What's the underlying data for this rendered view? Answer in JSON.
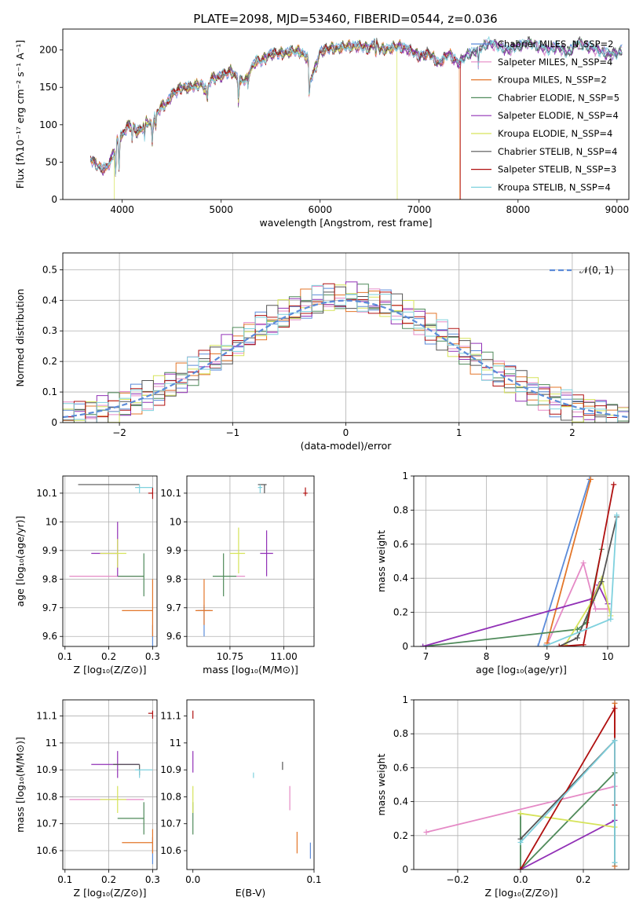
{
  "figure_title": "PLATE=2098, MJD=53460, FIBERID=0544, z=0.036",
  "colors": {
    "Chabrier MILES": "#5b8bd9",
    "Salpeter MILES": "#e58ac6",
    "Kroupa MILES": "#e3762a",
    "Chabrier ELODIE": "#4f8a5a",
    "Salpeter ELODIE": "#9130b6",
    "Kroupa ELODIE": "#d6e35a",
    "Chabrier STELIB": "#555555",
    "Salpeter STELIB": "#b01010",
    "Kroupa STELIB": "#7fd1de"
  },
  "chart_data": [
    {
      "id": "spectrum",
      "type": "line",
      "title": "PLATE=2098, MJD=53460, FIBERID=0544, z=0.036",
      "xlabel": "wavelength [Angstrom, rest frame]",
      "ylabel": "Flux [fλ10⁻¹⁷ erg cm⁻² s⁻¹ A⁻¹]",
      "xlim": [
        3400,
        9120
      ],
      "ylim": [
        0,
        228
      ],
      "xticks": [
        4000,
        5000,
        6000,
        7000,
        8000,
        9000
      ],
      "yticks": [
        0,
        50,
        100,
        150,
        200
      ],
      "legend_position": "top-right",
      "legend": [
        "Chabrier MILES, N_SSP=2",
        "Salpeter MILES, N_SSP=4",
        "Kroupa MILES, N_SSP=2",
        "Chabrier ELODIE, N_SSP=5",
        "Salpeter ELODIE, N_SSP=4",
        "Kroupa ELODIE, N_SSP=4",
        "Chabrier STELIB, N_SSP=4",
        "Salpeter STELIB, N_SSP=3",
        "Kroupa STELIB, N_SSP=4"
      ],
      "spectrum_x": [
        3680,
        3750,
        3820,
        3880,
        3950,
        4000,
        4050,
        4100,
        4150,
        4200,
        4250,
        4300,
        4350,
        4400,
        4450,
        4500,
        4600,
        4700,
        4800,
        4850,
        4900,
        5000,
        5100,
        5150,
        5200,
        5250,
        5300,
        5350,
        5400,
        5500,
        5600,
        5700,
        5800,
        5880,
        5900,
        5950,
        6000,
        6100,
        6200,
        6300,
        6400,
        6500,
        6560,
        6600,
        6700,
        6800,
        6900,
        7000,
        7100,
        7200,
        7300,
        7400,
        7500,
        7600,
        7700,
        7800,
        7900,
        8000,
        8100,
        8200,
        8300,
        8400,
        8500,
        8600,
        8700,
        8800,
        8900,
        9000,
        9050
      ],
      "spectrum_y": [
        55,
        45,
        40,
        50,
        80,
        85,
        98,
        100,
        90,
        95,
        105,
        100,
        115,
        125,
        128,
        140,
        150,
        150,
        155,
        145,
        162,
        165,
        172,
        165,
        158,
        160,
        175,
        185,
        185,
        195,
        195,
        198,
        198,
        188,
        160,
        175,
        198,
        202,
        203,
        205,
        205,
        202,
        212,
        200,
        202,
        205,
        200,
        192,
        195,
        182,
        195,
        182,
        195,
        200,
        210,
        205,
        200,
        205,
        210,
        205,
        200,
        205,
        195,
        210,
        205,
        200,
        195,
        195,
        200
      ],
      "truncations": [
        {
          "series": "Kroupa ELODIE",
          "start": 3920
        },
        {
          "series": "Kroupa ELODIE",
          "end": 6780
        },
        {
          "series": "Salpeter STELIB",
          "end": 7420
        },
        {
          "series": "Kroupa MILES",
          "end": 7410
        }
      ]
    },
    {
      "id": "residuals",
      "type": "step",
      "xlabel": "(data-model)/error",
      "ylabel": "Normed distribution",
      "xlim": [
        -2.5,
        2.5
      ],
      "ylim": [
        0,
        0.555
      ],
      "xticks": [
        -2,
        -1,
        0,
        1,
        2
      ],
      "xticklabels": [
        "−2",
        "−1",
        "0",
        "1",
        "2"
      ],
      "yticks": [
        0.0,
        0.1,
        0.2,
        0.3,
        0.4,
        0.5
      ],
      "grid": true,
      "legend_position": "top-right",
      "gaussian_label": "𝒩(0, 1)",
      "bin_width": 0.1,
      "bin_start": -2.5
    },
    {
      "id": "age_vs_Z",
      "type": "errorbar",
      "xlabel": "Z [log₁₀(Z/Z⊙)]",
      "ylabel": "age  [log₁₀(age/yr)]",
      "xlim": [
        0.095,
        0.31
      ],
      "ylim": [
        9.565,
        10.16
      ],
      "xticks": [
        0.1,
        0.2,
        0.3
      ],
      "yticks": [
        9.6,
        9.7,
        9.8,
        9.9,
        10.0,
        10.1
      ],
      "grid": true,
      "points": [
        {
          "series": "Chabrier MILES",
          "x": 0.3,
          "y": 9.6,
          "xerr": [
            0.3,
            0.3
          ],
          "yerr": [
            9.56,
            9.64
          ]
        },
        {
          "series": "Salpeter MILES",
          "x": 0.22,
          "y": 9.81,
          "xerr": [
            0.11,
            0.28
          ],
          "yerr": [
            9.81,
            9.81
          ]
        },
        {
          "series": "Kroupa MILES",
          "x": 0.3,
          "y": 9.69,
          "xerr": [
            0.23,
            0.3
          ],
          "yerr": [
            9.6,
            9.8
          ]
        },
        {
          "series": "Chabrier ELODIE",
          "x": 0.28,
          "y": 9.81,
          "xerr": [
            0.22,
            0.28
          ],
          "yerr": [
            9.74,
            9.89
          ]
        },
        {
          "series": "Salpeter ELODIE",
          "x": 0.22,
          "y": 9.89,
          "xerr": [
            0.16,
            0.22
          ],
          "yerr": [
            9.81,
            10.0
          ]
        },
        {
          "series": "Kroupa ELODIE",
          "x": 0.22,
          "y": 9.89,
          "xerr": [
            0.18,
            0.24
          ],
          "yerr": [
            9.84,
            9.94
          ]
        },
        {
          "series": "Chabrier STELIB",
          "x": 0.27,
          "y": 10.13,
          "xerr": [
            0.13,
            0.27
          ],
          "yerr": [
            10.13,
            10.13
          ]
        },
        {
          "series": "Salpeter STELIB",
          "x": 0.3,
          "y": 10.1,
          "xerr": [
            0.29,
            0.3
          ],
          "yerr": [
            10.08,
            10.12
          ]
        },
        {
          "series": "Kroupa STELIB",
          "x": 0.27,
          "y": 10.12,
          "xerr": [
            0.26,
            0.3
          ],
          "yerr": [
            10.1,
            10.13
          ]
        }
      ]
    },
    {
      "id": "age_vs_mass",
      "type": "errorbar",
      "xlabel": "mass [log₁₀(M/M⊙)]",
      "xlim": [
        10.55,
        11.14
      ],
      "ylim": [
        9.565,
        10.16
      ],
      "xticks": [
        10.75,
        11.0
      ],
      "xticklabels": [
        "10.75",
        "11.00"
      ],
      "yticks": [
        9.6,
        9.7,
        9.8,
        9.9,
        10.0,
        10.1
      ],
      "grid": true,
      "points": [
        {
          "series": "Chabrier MILES",
          "x": 10.63,
          "y": 9.69,
          "xerr": [
            10.6,
            10.66
          ],
          "yerr": [
            9.6,
            9.71
          ]
        },
        {
          "series": "Salpeter MILES",
          "x": 10.8,
          "y": 9.81,
          "xerr": [
            10.78,
            10.82
          ],
          "yerr": [
            9.81,
            9.81
          ]
        },
        {
          "series": "Kroupa MILES",
          "x": 10.63,
          "y": 9.69,
          "xerr": [
            10.59,
            10.67
          ],
          "yerr": [
            9.64,
            9.8
          ]
        },
        {
          "series": "Chabrier ELODIE",
          "x": 10.72,
          "y": 9.81,
          "xerr": [
            10.67,
            10.78
          ],
          "yerr": [
            9.74,
            9.89
          ]
        },
        {
          "series": "Salpeter ELODIE",
          "x": 10.92,
          "y": 9.89,
          "xerr": [
            10.89,
            10.95
          ],
          "yerr": [
            9.81,
            9.97
          ]
        },
        {
          "series": "Kroupa ELODIE",
          "x": 10.79,
          "y": 9.89,
          "xerr": [
            10.75,
            10.82
          ],
          "yerr": [
            9.82,
            9.98
          ]
        },
        {
          "series": "Chabrier STELIB",
          "x": 10.91,
          "y": 10.13,
          "xerr": [
            10.88,
            10.92
          ],
          "yerr": [
            10.1,
            10.13
          ]
        },
        {
          "series": "Salpeter STELIB",
          "x": 11.1,
          "y": 10.1,
          "xerr": [
            11.09,
            11.11
          ],
          "yerr": [
            10.09,
            10.12
          ]
        },
        {
          "series": "Kroupa STELIB",
          "x": 10.89,
          "y": 10.12,
          "xerr": [
            10.88,
            10.9
          ],
          "yerr": [
            10.1,
            10.13
          ]
        }
      ]
    },
    {
      "id": "mass_vs_Z",
      "type": "errorbar",
      "xlabel": "Z [log₁₀(Z/Z⊙)]",
      "ylabel": "mass [log₁₀(M/M⊙)]",
      "xlim": [
        0.095,
        0.31
      ],
      "ylim": [
        10.53,
        11.16
      ],
      "xticks": [
        0.1,
        0.2,
        0.3
      ],
      "yticks": [
        10.6,
        10.7,
        10.8,
        10.9,
        11.0,
        11.1
      ],
      "grid": true,
      "points": [
        {
          "series": "Chabrier MILES",
          "x": 0.3,
          "y": 10.6,
          "xerr": [
            0.3,
            0.3
          ],
          "yerr": [
            10.55,
            10.65
          ]
        },
        {
          "series": "Salpeter MILES",
          "x": 0.22,
          "y": 10.79,
          "xerr": [
            0.11,
            0.28
          ],
          "yerr": [
            10.79,
            10.79
          ]
        },
        {
          "series": "Kroupa MILES",
          "x": 0.3,
          "y": 10.63,
          "xerr": [
            0.23,
            0.3
          ],
          "yerr": [
            10.59,
            10.68
          ]
        },
        {
          "series": "Chabrier ELODIE",
          "x": 0.28,
          "y": 10.72,
          "xerr": [
            0.22,
            0.28
          ],
          "yerr": [
            10.66,
            10.78
          ]
        },
        {
          "series": "Salpeter ELODIE",
          "x": 0.22,
          "y": 10.92,
          "xerr": [
            0.16,
            0.27
          ],
          "yerr": [
            10.87,
            10.97
          ]
        },
        {
          "series": "Kroupa ELODIE",
          "x": 0.22,
          "y": 10.79,
          "xerr": [
            0.18,
            0.24
          ],
          "yerr": [
            10.74,
            10.84
          ]
        },
        {
          "series": "Chabrier STELIB",
          "x": 0.27,
          "y": 10.92,
          "xerr": [
            0.21,
            0.27
          ],
          "yerr": [
            10.88,
            10.92
          ]
        },
        {
          "series": "Salpeter STELIB",
          "x": 0.3,
          "y": 11.11,
          "xerr": [
            0.29,
            0.3
          ],
          "yerr": [
            11.09,
            11.12
          ]
        },
        {
          "series": "Kroupa STELIB",
          "x": 0.27,
          "y": 10.9,
          "xerr": [
            0.26,
            0.3
          ],
          "yerr": [
            10.87,
            10.9
          ]
        }
      ]
    },
    {
      "id": "mass_vs_EBV",
      "type": "errorbar",
      "xlabel": "E(B-V)",
      "xlim": [
        -0.005,
        0.1
      ],
      "ylim": [
        10.53,
        11.16
      ],
      "xticks": [
        0.0,
        0.1
      ],
      "xticklabels": [
        "0.0",
        "0.1"
      ],
      "yticks": [
        10.6,
        10.7,
        10.8,
        10.9,
        11.0,
        11.1
      ],
      "grid": false,
      "points": [
        {
          "series": "Chabrier MILES",
          "x": 0.097,
          "y": 10.6,
          "yerr": [
            10.57,
            10.63
          ]
        },
        {
          "series": "Salpeter MILES",
          "x": 0.08,
          "y": 10.79,
          "yerr": [
            10.75,
            10.84
          ]
        },
        {
          "series": "Kroupa MILES",
          "x": 0.086,
          "y": 10.63,
          "yerr": [
            10.59,
            10.67
          ]
        },
        {
          "series": "Chabrier ELODIE",
          "x": 0.0,
          "y": 10.72,
          "yerr": [
            10.66,
            10.78
          ]
        },
        {
          "series": "Salpeter ELODIE",
          "x": 0.0,
          "y": 10.92,
          "yerr": [
            10.89,
            10.97
          ]
        },
        {
          "series": "Kroupa ELODIE",
          "x": 0.0,
          "y": 10.79,
          "yerr": [
            10.74,
            10.84
          ]
        },
        {
          "series": "Chabrier STELIB",
          "x": 0.074,
          "y": 10.92,
          "yerr": [
            10.9,
            10.93
          ]
        },
        {
          "series": "Salpeter STELIB",
          "x": 0.0,
          "y": 11.11,
          "yerr": [
            11.09,
            11.12
          ]
        },
        {
          "series": "Kroupa STELIB",
          "x": 0.05,
          "y": 10.88,
          "yerr": [
            10.87,
            10.89
          ]
        }
      ]
    },
    {
      "id": "weight_vs_age",
      "type": "line",
      "xlabel": "age  [log₁₀(age/yr)]",
      "ylabel": "mass weight",
      "xlim": [
        6.8,
        10.35
      ],
      "ylim": [
        0,
        1
      ],
      "xticks": [
        7,
        8,
        9,
        10
      ],
      "yticks": [
        0.0,
        0.2,
        0.4,
        0.6,
        0.8,
        1.0
      ],
      "grid": true,
      "series": [
        {
          "name": "Chabrier MILES",
          "x": [
            8.85,
            9.7
          ],
          "y": [
            0.0,
            0.98
          ]
        },
        {
          "name": "Salpeter MILES",
          "x": [
            9.0,
            9.6,
            9.8,
            10.0
          ],
          "y": [
            0.01,
            0.49,
            0.22,
            0.22
          ]
        },
        {
          "name": "Kroupa MILES",
          "x": [
            9.0,
            9.72
          ],
          "y": [
            0.02,
            0.98
          ]
        },
        {
          "name": "Chabrier ELODIE",
          "x": [
            6.95,
            9.5,
            9.65,
            9.9
          ],
          "y": [
            0.0,
            0.1,
            0.14,
            0.57
          ]
        },
        {
          "name": "Salpeter ELODIE",
          "x": [
            6.95,
            9.75,
            9.85,
            10.0
          ],
          "y": [
            0.0,
            0.28,
            0.36,
            0.25
          ]
        },
        {
          "name": "Kroupa ELODIE",
          "x": [
            9.3,
            9.75,
            9.9,
            10.05
          ],
          "y": [
            0.01,
            0.27,
            0.4,
            0.18
          ]
        },
        {
          "name": "Chabrier STELIB",
          "x": [
            9.2,
            9.5,
            9.9,
            10.15
          ],
          "y": [
            0.0,
            0.05,
            0.38,
            0.76
          ]
        },
        {
          "name": "Salpeter STELIB",
          "x": [
            9.2,
            9.6,
            10.1
          ],
          "y": [
            0.0,
            0.01,
            0.95
          ]
        },
        {
          "name": "Kroupa STELIB",
          "x": [
            8.95,
            10.05,
            10.15
          ],
          "y": [
            0.0,
            0.16,
            0.77
          ]
        }
      ]
    },
    {
      "id": "weight_vs_Z",
      "type": "line",
      "xlabel": "Z [log₁₀(Z/Z⊙)]",
      "ylabel": "mass weight",
      "xlim": [
        -0.34,
        0.345
      ],
      "ylim": [
        0,
        1
      ],
      "xticks": [
        -0.2,
        0.0,
        0.2
      ],
      "xticklabels": [
        "−0.2",
        "0.0",
        "0.2"
      ],
      "yticks": [
        0.0,
        0.2,
        0.4,
        0.6,
        0.8,
        1.0
      ],
      "grid": true,
      "series": [
        {
          "name": "Chabrier MILES",
          "x": [
            0.3,
            0.3
          ],
          "y": [
            0.02,
            0.98
          ]
        },
        {
          "name": "Salpeter MILES",
          "x": [
            -0.3,
            0.3
          ],
          "y": [
            0.22,
            0.49
          ]
        },
        {
          "name": "Kroupa MILES",
          "x": [
            0.3,
            0.3
          ],
          "y": [
            0.02,
            0.98
          ]
        },
        {
          "name": "Chabrier ELODIE",
          "x": [
            0.0,
            0.0,
            0.3
          ],
          "y": [
            0.33,
            0.0,
            0.57
          ]
        },
        {
          "name": "Salpeter ELODIE",
          "x": [
            0.0,
            0.3
          ],
          "y": [
            0.0,
            0.29
          ]
        },
        {
          "name": "Kroupa ELODIE",
          "x": [
            0.0,
            0.3
          ],
          "y": [
            0.33,
            0.25
          ]
        },
        {
          "name": "Chabrier STELIB",
          "x": [
            0.0,
            0.3,
            0.3
          ],
          "y": [
            0.18,
            0.76,
            0.04
          ]
        },
        {
          "name": "Salpeter STELIB",
          "x": [
            0.0,
            0.3,
            0.3
          ],
          "y": [
            0.0,
            0.95,
            0.38
          ]
        },
        {
          "name": "Kroupa STELIB",
          "x": [
            0.0,
            0.3,
            0.3
          ],
          "y": [
            0.16,
            0.76,
            0.04
          ]
        }
      ]
    }
  ]
}
